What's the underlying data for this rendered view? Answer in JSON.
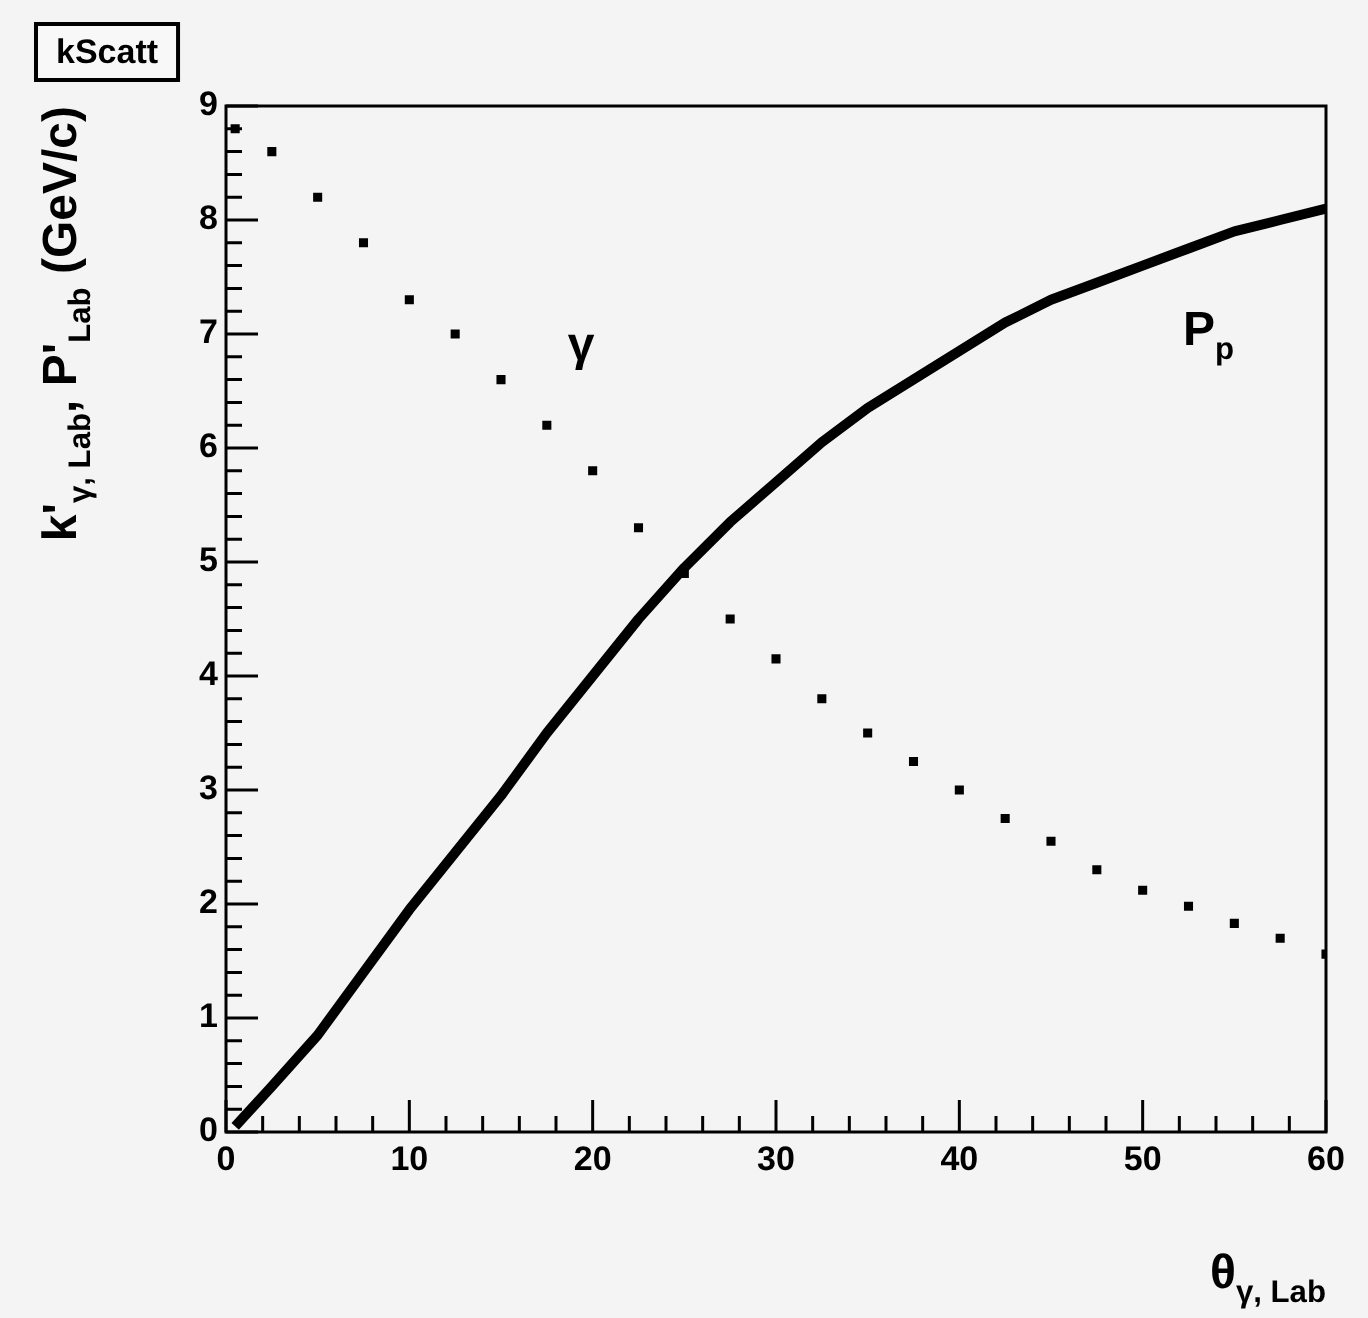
{
  "chart_data": {
    "type": "scatter",
    "title": "kScatt",
    "xlabel": "θ$_{γ, Lab}$",
    "ylabel": "k'$_{γ, Lab}$, P'$_{Lab}$ (GeV/c)",
    "xlim": [
      0,
      60
    ],
    "ylim": [
      0,
      9
    ],
    "xticks": [
      0,
      10,
      20,
      30,
      40,
      50,
      60
    ],
    "yticks": [
      0,
      1,
      2,
      3,
      4,
      5,
      6,
      7,
      8,
      9
    ],
    "grid": false,
    "legend": false,
    "marker": "square",
    "series": [
      {
        "name": "γ",
        "color": "#000000",
        "x": [
          0.5,
          2.5,
          5,
          7.5,
          10,
          12.5,
          15,
          17.5,
          20,
          22.5,
          25,
          27.5,
          30,
          32.5,
          35,
          37.5,
          40,
          42.5,
          45,
          47.5,
          50,
          52.5,
          55,
          57.5,
          60
        ],
        "values": [
          8.8,
          8.6,
          8.2,
          7.8,
          7.3,
          7.0,
          6.6,
          6.2,
          5.8,
          5.3,
          4.9,
          4.5,
          4.15,
          3.8,
          3.5,
          3.25,
          3.0,
          2.75,
          2.55,
          2.3,
          2.12,
          1.98,
          1.83,
          1.7,
          1.56
        ]
      },
      {
        "name": "P$_{p}$",
        "type": "line",
        "color": "#000000",
        "marker": "none",
        "x": [
          0.5,
          2.5,
          5,
          7.5,
          10,
          12.5,
          15,
          17.5,
          20,
          22.5,
          25,
          27.5,
          30,
          32.5,
          35,
          37.5,
          40,
          42.5,
          45,
          47.5,
          50,
          52.5,
          55,
          57.5,
          60
        ],
        "values": [
          0.05,
          0.4,
          0.85,
          1.4,
          1.95,
          2.45,
          2.95,
          3.5,
          4.0,
          4.5,
          4.95,
          5.35,
          5.7,
          6.05,
          6.35,
          6.6,
          6.85,
          7.1,
          7.3,
          7.45,
          7.6,
          7.75,
          7.9,
          8.0,
          8.1
        ]
      }
    ]
  }
}
